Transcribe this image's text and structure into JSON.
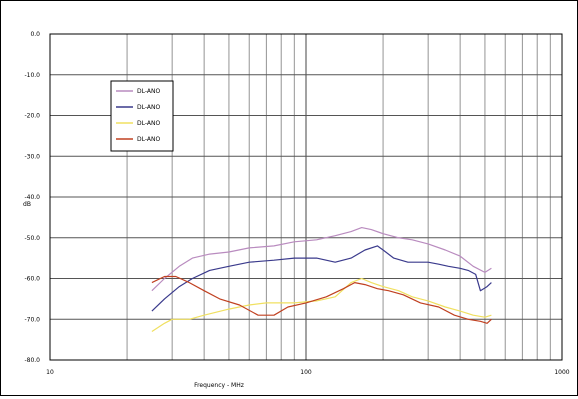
{
  "chart_data": {
    "type": "line",
    "xscale": "log",
    "xlim": [
      10,
      1000
    ],
    "ylim": [
      -80,
      0
    ],
    "xlabel": "Frequency - MHz",
    "ylabel": "dB",
    "x_ticks": [
      "10",
      "100",
      "1000"
    ],
    "y_ticks": [
      "0.0",
      "-10.0",
      "-20.0",
      "-30.0",
      "-40.0",
      "-50.0",
      "-60.0",
      "-70.0",
      "-80.0"
    ],
    "grid": true,
    "legend_position": "upper-left",
    "series": [
      {
        "name": "DL-ANO",
        "color": "#b98bbf",
        "points": [
          [
            25,
            -63
          ],
          [
            28,
            -60
          ],
          [
            32,
            -57
          ],
          [
            36,
            -55
          ],
          [
            42,
            -54
          ],
          [
            50,
            -53.5
          ],
          [
            60,
            -52.5
          ],
          [
            75,
            -52
          ],
          [
            90,
            -51
          ],
          [
            110,
            -50.5
          ],
          [
            130,
            -49.5
          ],
          [
            150,
            -48.5
          ],
          [
            165,
            -47.5
          ],
          [
            180,
            -48
          ],
          [
            200,
            -49
          ],
          [
            230,
            -50
          ],
          [
            260,
            -50.5
          ],
          [
            300,
            -51.5
          ],
          [
            350,
            -53
          ],
          [
            400,
            -54.5
          ],
          [
            450,
            -57
          ],
          [
            500,
            -58.5
          ],
          [
            530,
            -57.5
          ]
        ]
      },
      {
        "name": "DL-ANO",
        "color": "#3a3a8c",
        "points": [
          [
            25,
            -68
          ],
          [
            28,
            -65
          ],
          [
            32,
            -62
          ],
          [
            36,
            -60
          ],
          [
            42,
            -58
          ],
          [
            50,
            -57
          ],
          [
            60,
            -56
          ],
          [
            75,
            -55.5
          ],
          [
            90,
            -55
          ],
          [
            110,
            -55
          ],
          [
            130,
            -56
          ],
          [
            150,
            -55
          ],
          [
            170,
            -53
          ],
          [
            190,
            -52
          ],
          [
            200,
            -53
          ],
          [
            220,
            -55
          ],
          [
            250,
            -56
          ],
          [
            300,
            -56
          ],
          [
            330,
            -56.5
          ],
          [
            360,
            -57
          ],
          [
            400,
            -57.5
          ],
          [
            430,
            -58
          ],
          [
            460,
            -59
          ],
          [
            480,
            -63
          ],
          [
            510,
            -62
          ],
          [
            530,
            -61
          ]
        ]
      },
      {
        "name": "DL-ANO",
        "color": "#f0e060",
        "points": [
          [
            25,
            -73
          ],
          [
            28,
            -71
          ],
          [
            30,
            -70
          ],
          [
            35,
            -70
          ],
          [
            40,
            -69
          ],
          [
            50,
            -67.5
          ],
          [
            60,
            -66.5
          ],
          [
            70,
            -66
          ],
          [
            90,
            -66
          ],
          [
            110,
            -65.5
          ],
          [
            130,
            -64.5
          ],
          [
            150,
            -61
          ],
          [
            165,
            -60
          ],
          [
            180,
            -61
          ],
          [
            200,
            -62
          ],
          [
            230,
            -63
          ],
          [
            260,
            -64.5
          ],
          [
            300,
            -65.5
          ],
          [
            350,
            -67
          ],
          [
            400,
            -68
          ],
          [
            450,
            -69
          ],
          [
            500,
            -69.5
          ],
          [
            530,
            -69
          ]
        ]
      },
      {
        "name": "DL-ANO",
        "color": "#c04020",
        "points": [
          [
            25,
            -61
          ],
          [
            28,
            -59.5
          ],
          [
            31,
            -59.5
          ],
          [
            35,
            -61
          ],
          [
            40,
            -63
          ],
          [
            46,
            -65
          ],
          [
            55,
            -66.5
          ],
          [
            65,
            -69
          ],
          [
            75,
            -69
          ],
          [
            85,
            -67
          ],
          [
            100,
            -66
          ],
          [
            120,
            -64.5
          ],
          [
            140,
            -62.5
          ],
          [
            155,
            -61
          ],
          [
            170,
            -61.5
          ],
          [
            190,
            -62.5
          ],
          [
            210,
            -63
          ],
          [
            240,
            -64
          ],
          [
            280,
            -66
          ],
          [
            330,
            -67
          ],
          [
            380,
            -69
          ],
          [
            430,
            -70
          ],
          [
            480,
            -70.5
          ],
          [
            510,
            -71
          ],
          [
            530,
            -70
          ]
        ]
      }
    ]
  }
}
